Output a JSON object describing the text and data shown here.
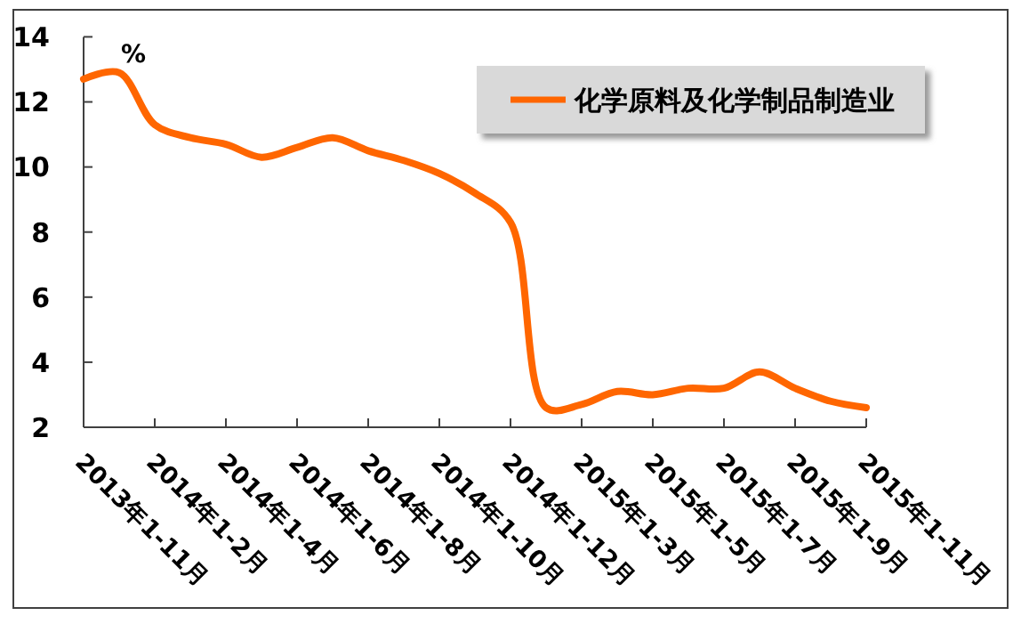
{
  "chart_data": {
    "type": "line",
    "ylabel": "%",
    "categories": [
      "2013年1-11月",
      null,
      "2014年1-2月",
      null,
      "2014年1-4月",
      null,
      "2014年1-6月",
      null,
      "2014年1-8月",
      null,
      "2014年1-10月",
      null,
      "2014年1-12月",
      null,
      "2015年1-3月",
      null,
      "2015年1-5月",
      null,
      "2015年1-7月",
      null,
      "2015年1-9月",
      null,
      "2015年1-11月"
    ],
    "series": [
      {
        "name": "化学原料及化学制品制造业",
        "color": "#ff6600",
        "values": [
          12.7,
          12.9,
          11.3,
          10.9,
          10.7,
          10.3,
          10.6,
          10.9,
          10.5,
          10.2,
          9.8,
          9.2,
          8.3,
          2.6,
          2.7,
          3.1,
          3.0,
          3.2,
          3.2,
          3.7,
          3.2,
          2.8,
          2.6
        ]
      }
    ],
    "ylim": [
      2,
      14
    ],
    "yticks": [
      2,
      4,
      6,
      8,
      10,
      12,
      14
    ],
    "legend": "top right",
    "line_style": "solid"
  }
}
